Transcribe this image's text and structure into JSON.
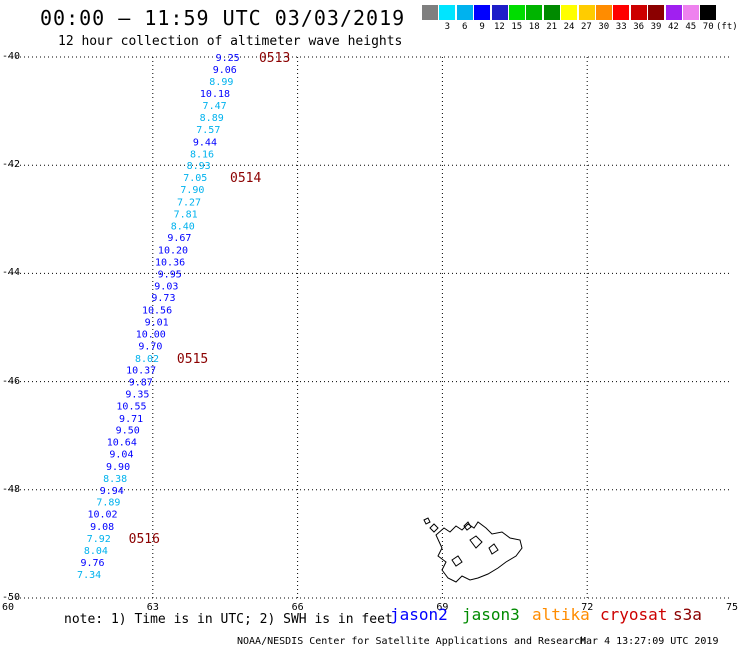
{
  "header": {
    "title": "00:00 – 11:59 UTC 03/03/2019",
    "subtitle": "12 hour collection of altimeter wave heights"
  },
  "legend": {
    "unit": "(ft)",
    "steps": [
      {
        "label": "",
        "color": "#7f7f7f"
      },
      {
        "label": "3",
        "color": "#00e5ff"
      },
      {
        "label": "6",
        "color": "#00b2ee"
      },
      {
        "label": "9",
        "color": "#0000ff"
      },
      {
        "label": "12",
        "color": "#1e1ec8"
      },
      {
        "label": "15",
        "color": "#00dd00"
      },
      {
        "label": "18",
        "color": "#00b400"
      },
      {
        "label": "21",
        "color": "#008a00"
      },
      {
        "label": "24",
        "color": "#ffff00"
      },
      {
        "label": "27",
        "color": "#ffcc00"
      },
      {
        "label": "30",
        "color": "#ff8c00"
      },
      {
        "label": "33",
        "color": "#ff0000"
      },
      {
        "label": "36",
        "color": "#cd0000"
      },
      {
        "label": "39",
        "color": "#8b0000"
      },
      {
        "label": "42",
        "color": "#a020f0"
      },
      {
        "label": "45",
        "color": "#ee82ee"
      },
      {
        "label": "70",
        "color": "#000000"
      }
    ]
  },
  "axes": {
    "lat_labels": [
      "-40",
      "-42",
      "-44",
      "-46",
      "-48",
      "-50"
    ],
    "lon_labels": [
      "60",
      "63",
      "66",
      "69",
      "72",
      "75"
    ]
  },
  "chart_data": {
    "type": "scatter",
    "map_extent": {
      "lon": [
        60,
        75
      ],
      "lat": [
        -50,
        -40
      ]
    },
    "units": "ft",
    "points": [
      {
        "lon": 64.8,
        "lat": -40.0,
        "swh": 9.25
      },
      {
        "lon": 64.74,
        "lat": -40.22,
        "swh": 9.06
      },
      {
        "lon": 64.67,
        "lat": -40.44,
        "swh": 8.99
      },
      {
        "lon": 64.6,
        "lat": -40.67,
        "swh": 10.18
      },
      {
        "lon": 64.53,
        "lat": -40.89,
        "swh": 7.47
      },
      {
        "lon": 64.47,
        "lat": -41.11,
        "swh": 8.89
      },
      {
        "lon": 64.4,
        "lat": -41.33,
        "swh": 7.57
      },
      {
        "lon": 64.33,
        "lat": -41.56,
        "swh": 9.44
      },
      {
        "lon": 64.27,
        "lat": -41.78,
        "swh": 8.16
      },
      {
        "lon": 64.2,
        "lat": -42.0,
        "swh": 8.93
      },
      {
        "lon": 64.13,
        "lat": -42.22,
        "swh": 7.05
      },
      {
        "lon": 64.07,
        "lat": -42.44,
        "swh": 7.9
      },
      {
        "lon": 64.0,
        "lat": -42.67,
        "swh": 7.27
      },
      {
        "lon": 63.93,
        "lat": -42.89,
        "swh": 7.81
      },
      {
        "lon": 63.87,
        "lat": -43.11,
        "swh": 8.4
      },
      {
        "lon": 63.8,
        "lat": -43.33,
        "swh": 9.67
      },
      {
        "lon": 63.73,
        "lat": -43.56,
        "swh": 10.2
      },
      {
        "lon": 63.67,
        "lat": -43.78,
        "swh": 10.36
      },
      {
        "lon": 63.6,
        "lat": -44.0,
        "swh": 9.95
      },
      {
        "lon": 63.53,
        "lat": -44.22,
        "swh": 9.03
      },
      {
        "lon": 63.47,
        "lat": -44.44,
        "swh": 9.73
      },
      {
        "lon": 63.4,
        "lat": -44.67,
        "swh": 10.56
      },
      {
        "lon": 63.33,
        "lat": -44.89,
        "swh": 9.01
      },
      {
        "lon": 63.27,
        "lat": -45.11,
        "swh": 10.0
      },
      {
        "lon": 63.2,
        "lat": -45.33,
        "swh": 9.7
      },
      {
        "lon": 63.13,
        "lat": -45.56,
        "swh": 8.02
      },
      {
        "lon": 63.07,
        "lat": -45.78,
        "swh": 10.37
      },
      {
        "lon": 63.0,
        "lat": -46.0,
        "swh": 9.87
      },
      {
        "lon": 62.93,
        "lat": -46.22,
        "swh": 9.35
      },
      {
        "lon": 62.87,
        "lat": -46.44,
        "swh": 10.55
      },
      {
        "lon": 62.8,
        "lat": -46.67,
        "swh": 9.71
      },
      {
        "lon": 62.73,
        "lat": -46.89,
        "swh": 9.5
      },
      {
        "lon": 62.67,
        "lat": -47.11,
        "swh": 10.64
      },
      {
        "lon": 62.6,
        "lat": -47.33,
        "swh": 9.04
      },
      {
        "lon": 62.53,
        "lat": -47.56,
        "swh": 9.9
      },
      {
        "lon": 62.47,
        "lat": -47.78,
        "swh": 8.38
      },
      {
        "lon": 62.4,
        "lat": -48.0,
        "swh": 9.94
      },
      {
        "lon": 62.33,
        "lat": -48.22,
        "swh": 7.89
      },
      {
        "lon": 62.27,
        "lat": -48.44,
        "swh": 10.02
      },
      {
        "lon": 62.2,
        "lat": -48.67,
        "swh": 9.08
      },
      {
        "lon": 62.13,
        "lat": -48.89,
        "swh": 7.92
      },
      {
        "lon": 62.07,
        "lat": -49.11,
        "swh": 8.04
      },
      {
        "lon": 62.0,
        "lat": -49.33,
        "swh": 9.76
      },
      {
        "lon": 61.93,
        "lat": -49.56,
        "swh": 7.34
      }
    ],
    "time_labels": [
      {
        "text": "0513",
        "lon": 65.2,
        "lat": -40.0
      },
      {
        "text": "0514",
        "lon": 64.6,
        "lat": -42.22
      },
      {
        "text": "0515",
        "lon": 63.5,
        "lat": -45.56
      },
      {
        "text": "0516",
        "lon": 62.5,
        "lat": -48.89
      }
    ]
  },
  "note": "note: 1) Time is in UTC; 2) SWH is in feet",
  "satellites": [
    {
      "name": "jason2",
      "color": "#0000ff"
    },
    {
      "name": "jason3",
      "color": "#008a00"
    },
    {
      "name": "altika",
      "color": "#ff8c00"
    },
    {
      "name": "cryosat",
      "color": "#cd0000"
    },
    {
      "name": "s3a",
      "color": "#8b0000"
    }
  ],
  "footer": {
    "credit": "NOAA/NESDIS Center for Satellite Applications and Research",
    "timestamp": "Mar  4 13:27:09 UTC 2019"
  }
}
